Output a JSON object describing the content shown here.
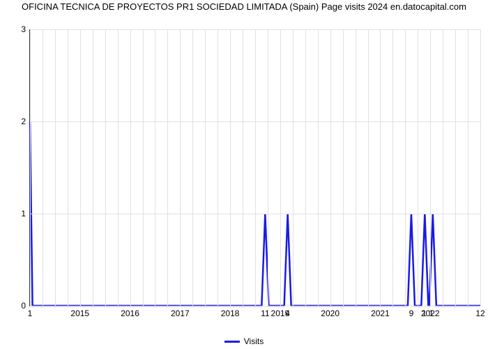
{
  "chart": {
    "type": "line",
    "title": "OFICINA TECNICA DE PROYECTOS PR1 SOCIEDAD LIMITADA (Spain) Page visits 2024 en.datocapital.com",
    "background_color": "#ffffff",
    "grid_color": "#e0e0e0",
    "axis_color": "#333333",
    "title_fontsize": 13,
    "tick_fontsize": 12,
    "line_color": "#1a1ae6",
    "line_width": 2.5,
    "xlim": [
      2014,
      2023
    ],
    "ylim": [
      0,
      3
    ],
    "yticks": [
      0,
      1,
      2,
      3
    ],
    "xticks_major": [
      2015,
      2016,
      2017,
      2018,
      2019,
      2020,
      2021,
      2022
    ],
    "n_minor_vgrid_between": 3,
    "spike_labels": [
      {
        "x": 2014.0,
        "label": "1"
      },
      {
        "x": 2018.7,
        "label": "11"
      },
      {
        "x": 2019.15,
        "label": "4"
      },
      {
        "x": 2021.62,
        "label": "9"
      },
      {
        "x": 2021.95,
        "label": "1 1"
      },
      {
        "x": 2023.0,
        "label": "12"
      }
    ],
    "series": {
      "name": "Visits",
      "points": [
        {
          "x": 2014.0,
          "y": 2.0
        },
        {
          "x": 2014.05,
          "y": 0.0
        },
        {
          "x": 2018.63,
          "y": 0.0
        },
        {
          "x": 2018.7,
          "y": 1.0
        },
        {
          "x": 2018.77,
          "y": 0.0
        },
        {
          "x": 2019.08,
          "y": 0.0
        },
        {
          "x": 2019.15,
          "y": 1.0
        },
        {
          "x": 2019.22,
          "y": 0.0
        },
        {
          "x": 2021.55,
          "y": 0.0
        },
        {
          "x": 2021.62,
          "y": 1.0
        },
        {
          "x": 2021.69,
          "y": 0.0
        },
        {
          "x": 2021.82,
          "y": 0.0
        },
        {
          "x": 2021.89,
          "y": 1.0
        },
        {
          "x": 2021.96,
          "y": 0.0
        },
        {
          "x": 2021.98,
          "y": 0.0
        },
        {
          "x": 2022.05,
          "y": 1.0
        },
        {
          "x": 2022.12,
          "y": 0.0
        },
        {
          "x": 2023.0,
          "y": 0.0
        }
      ]
    },
    "legend": {
      "label": "Visits",
      "color": "#1a1ae6"
    }
  }
}
